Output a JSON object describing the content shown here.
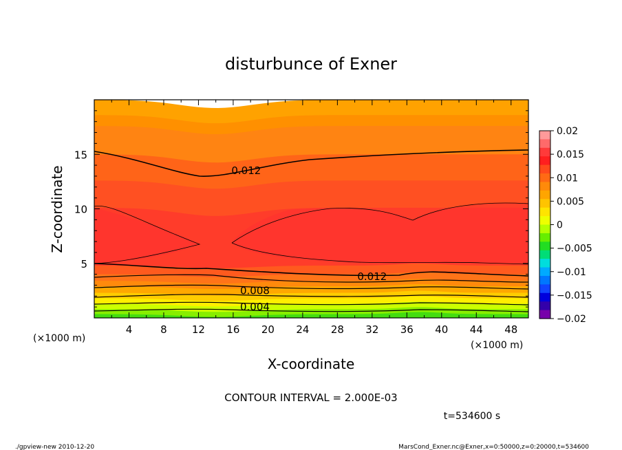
{
  "chart_data": {
    "type": "contour",
    "title": "disturbunce of Exner",
    "xlabel": "X-coordinate",
    "ylabel": "Z-coordinate",
    "x_unit": "(×1000 m)",
    "y_unit": "(×1000 m)",
    "xlim": [
      0,
      50
    ],
    "ylim": [
      0,
      20
    ],
    "x_ticks": [
      4,
      8,
      12,
      16,
      20,
      24,
      28,
      32,
      36,
      40,
      44,
      48
    ],
    "y_ticks": [
      5,
      10,
      15
    ],
    "contour_interval_label": "CONTOUR INTERVAL = 2.000E-03",
    "contour_labels": [
      {
        "text": "0.012",
        "x": 17.5,
        "z": 13.5
      },
      {
        "text": "0.012",
        "x": 32,
        "z": 3.8
      },
      {
        "text": "0.008",
        "x": 18.5,
        "z": 2.5
      },
      {
        "text": "0.004",
        "x": 18.5,
        "z": 1.0
      }
    ],
    "colorbar": {
      "ticks": [
        "0.02",
        "0.015",
        "0.01",
        "0.005",
        "0",
        "−0.005",
        "−0.01",
        "−0.015",
        "−0.02"
      ],
      "colors": [
        "#ff9a9a",
        "#ff6a6a",
        "#ff3a3a",
        "#ff1f1f",
        "#ff4a1c",
        "#ff6a14",
        "#ff8a0a",
        "#ffa500",
        "#ffc400",
        "#ffe400",
        "#eeff00",
        "#b4ff00",
        "#66ee00",
        "#22dd22",
        "#00dd77",
        "#00dddd",
        "#00aaff",
        "#0077ff",
        "#1144ff",
        "#0000dd",
        "#3300aa",
        "#7700aa"
      ]
    },
    "bands": [
      {
        "z": 20.0,
        "color": "#ffa200"
      },
      {
        "z": 18.6,
        "color": "#ff9000"
      },
      {
        "z": 17.6,
        "color": "#ff8412"
      },
      {
        "z": 15.0,
        "color": "#ff6418"
      },
      {
        "z": 12.6,
        "color": "#ff5022"
      },
      {
        "z": 10.1,
        "color": "#ff3c2a"
      },
      {
        "z": 4.8,
        "color": "#ff5a1e"
      },
      {
        "z": 4.0,
        "color": "#ff7418"
      },
      {
        "z": 3.4,
        "color": "#ff8a0c"
      },
      {
        "z": 2.9,
        "color": "#ffa800"
      },
      {
        "z": 2.3,
        "color": "#ffcc00"
      },
      {
        "z": 1.8,
        "color": "#ffee00"
      },
      {
        "z": 1.3,
        "color": "#ccff00"
      },
      {
        "z": 0.8,
        "color": "#88ee00"
      },
      {
        "z": 0.35,
        "color": "#44dd10"
      }
    ],
    "time_label": "t=534600 s"
  },
  "footer": {
    "left": "./gpview-new   2010-12-20",
    "right": "MarsCond_Exner.nc@Exner,x=0:50000,z=0:20000,t=534600"
  }
}
